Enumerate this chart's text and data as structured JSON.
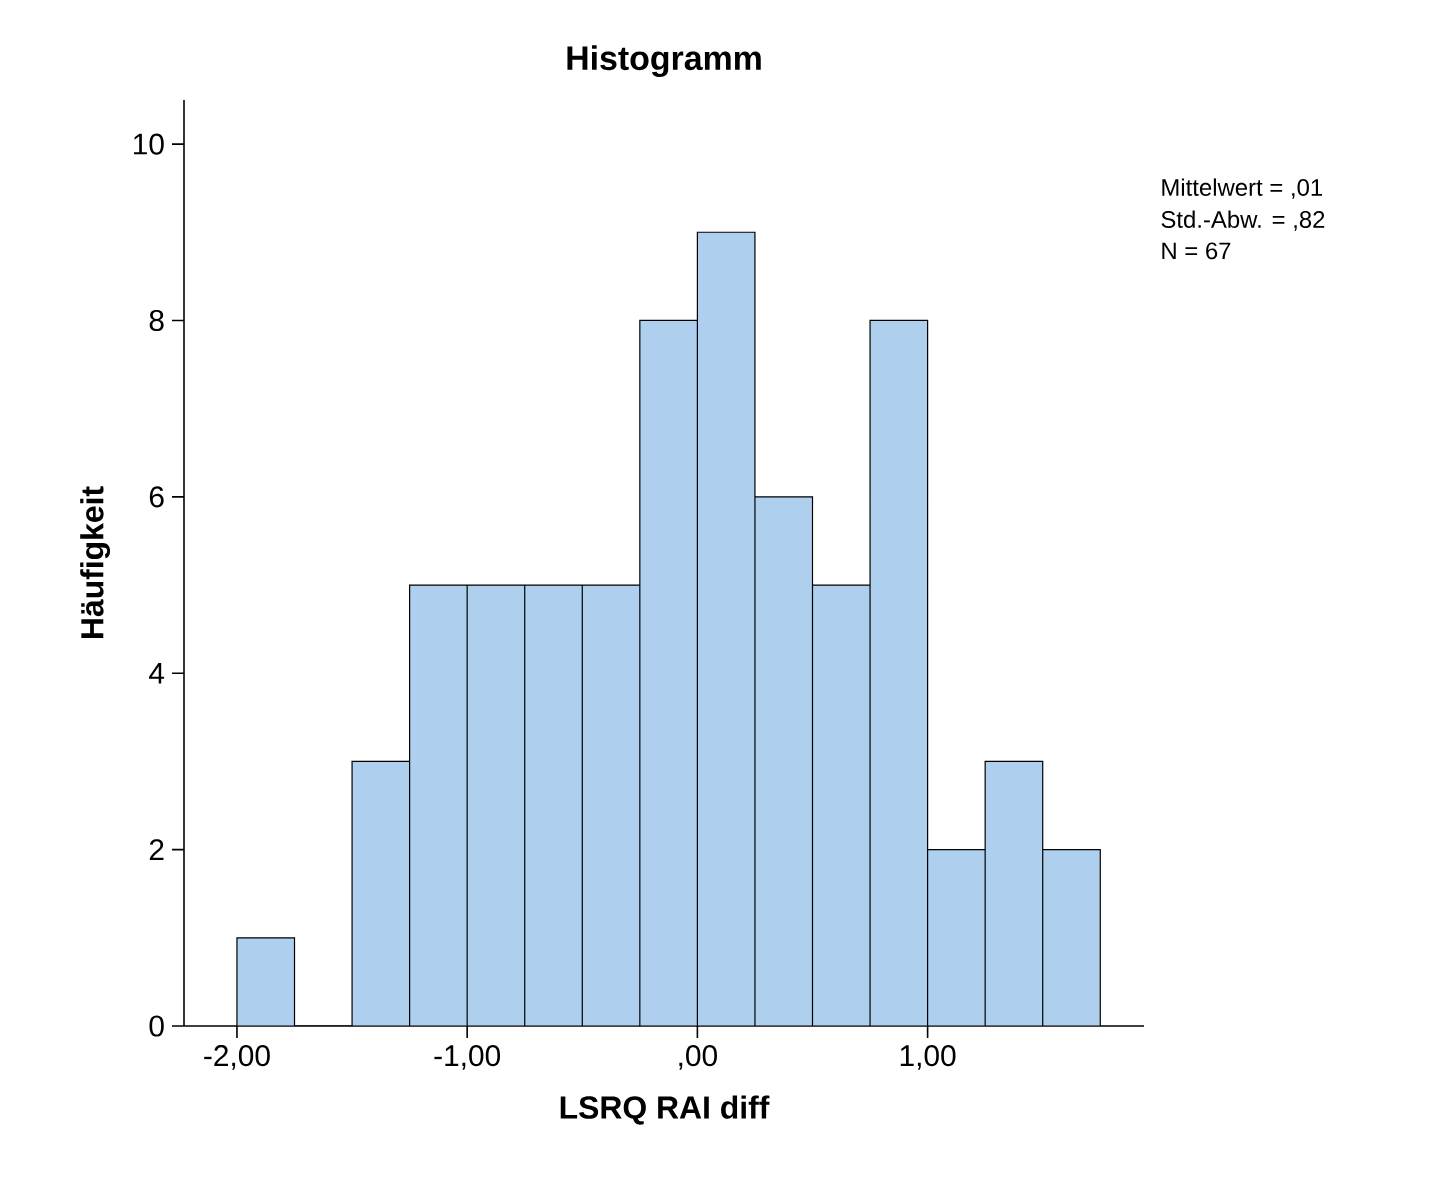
{
  "chart_data": {
    "type": "histogram",
    "title": "Histogramm",
    "xlabel": "LSRQ RAI diff",
    "ylabel": "Häufigkeit",
    "bins": [
      -2.0,
      -1.75,
      -1.5,
      -1.25,
      -1.0,
      -0.75,
      -0.5,
      -0.25,
      0.0,
      0.25,
      0.5,
      0.75,
      1.0,
      1.25,
      1.5,
      1.75
    ],
    "values": [
      1,
      0,
      3,
      5,
      5,
      5,
      5,
      8,
      9,
      6,
      5,
      8,
      2,
      3,
      2
    ],
    "color": "#afcfee",
    "xlim": [
      -2.23,
      1.94
    ],
    "ylim": [
      0,
      10.5
    ],
    "xticks": [
      {
        "value": -2,
        "label": "-2,00"
      },
      {
        "value": -1,
        "label": "-1,00"
      },
      {
        "value": 0,
        "label": ",00"
      },
      {
        "value": 1,
        "label": "1,00"
      }
    ],
    "yticks": [
      0,
      2,
      4,
      6,
      8,
      10
    ],
    "annotations": [
      "Mittelwert = ,01",
      "Std.-Abw. = ,82",
      "N = 67"
    ]
  }
}
